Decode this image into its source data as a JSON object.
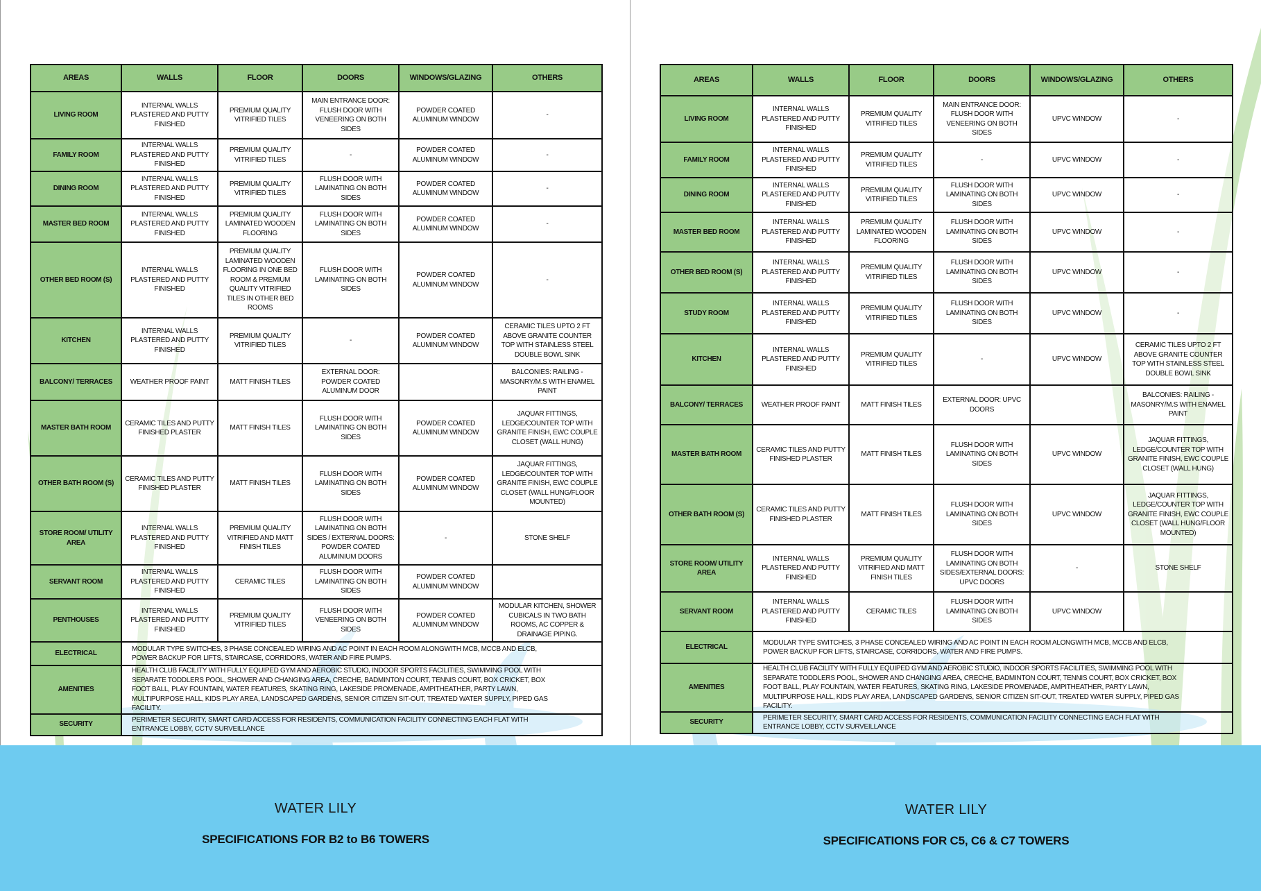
{
  "colors": {
    "header_green": "#98cb87",
    "footer_blue": "#6ecbf0",
    "leaf_green": "#a7d58f"
  },
  "left": {
    "headers": [
      "AREAS",
      "WALLS",
      "FLOOR",
      "DOORS",
      "WINDOWS/GLAZING",
      "OTHERS"
    ],
    "rows": [
      [
        "LIVING ROOM",
        "INTERNAL WALLS PLASTERED AND PUTTY FINISHED",
        "PREMIUM QUALITY VITRIFIED TILES",
        "MAIN ENTRANCE DOOR: FLUSH DOOR WITH VENEERING ON BOTH SIDES",
        "POWDER COATED ALUMINUM WINDOW",
        "-"
      ],
      [
        "FAMILY ROOM",
        "INTERNAL WALLS PLASTERED AND PUTTY FINISHED",
        "PREMIUM QUALITY VITRIFIED TILES",
        "-",
        "POWDER COATED ALUMINUM WINDOW",
        "-"
      ],
      [
        "DINING ROOM",
        "INTERNAL WALLS PLASTERED AND PUTTY FINISHED",
        "PREMIUM QUALITY VITRIFIED TILES",
        "FLUSH DOOR WITH LAMINATING ON BOTH SIDES",
        "POWDER COATED ALUMINUM WINDOW",
        "-"
      ],
      [
        "MASTER BED ROOM",
        "INTERNAL WALLS PLASTERED AND PUTTY FINISHED",
        "PREMIUM QUALITY LAMINATED WOODEN FLOORING",
        "FLUSH DOOR WITH LAMINATING ON BOTH SIDES",
        "POWDER COATED ALUMINUM WINDOW",
        "-"
      ],
      [
        "OTHER BED ROOM (S)",
        "INTERNAL WALLS PLASTERED AND PUTTY FINISHED",
        "PREMIUM QUALITY LAMINATED WOODEN FLOORING IN ONE BED ROOM & PREMIUM QUALITY VITRIFIED TILES IN OTHER BED ROOMS",
        "FLUSH DOOR WITH LAMINATING ON BOTH SIDES",
        "POWDER COATED ALUMINUM WINDOW",
        "-"
      ],
      [
        "KITCHEN",
        "INTERNAL WALLS PLASTERED AND PUTTY FINISHED",
        "PREMIUM QUALITY VITRIFIED TILES",
        "-",
        "POWDER COATED ALUMINUM WINDOW",
        "CERAMIC TILES UPTO 2 FT ABOVE GRANITE COUNTER TOP WITH STAINLESS STEEL DOUBLE BOWL SINK"
      ],
      [
        "BALCONY/ TERRACES",
        "WEATHER PROOF PAINT",
        "MATT FINISH TILES",
        "EXTERNAL DOOR: POWDER COATED ALUMINUM DOOR",
        "",
        "BALCONIES: RAILING - MASONRY/M.S WITH ENAMEL PAINT"
      ],
      [
        "MASTER BATH ROOM",
        "CERAMIC TILES AND PUTTY FINISHED PLASTER",
        "MATT FINISH TILES",
        "FLUSH DOOR WITH LAMINATING ON BOTH SIDES",
        "POWDER COATED ALUMINUM WINDOW",
        "JAQUAR FITTINGS, LEDGE/COUNTER TOP WITH GRANITE FINISH, EWC COUPLE CLOSET (WALL HUNG)"
      ],
      [
        "OTHER BATH ROOM (S)",
        "CERAMIC TILES AND PUTTY FINISHED PLASTER",
        "MATT FINISH TILES",
        "FLUSH DOOR WITH LAMINATING ON BOTH SIDES",
        "POWDER COATED ALUMINUM WINDOW",
        "JAQUAR FITTINGS, LEDGE/COUNTER TOP WITH GRANITE FINISH, EWC COUPLE CLOSET (WALL HUNG/FLOOR MOUNTED)"
      ],
      [
        "STORE ROOM/ UTILITY AREA",
        "INTERNAL WALLS PLASTERED AND PUTTY FINISHED",
        "PREMIUM QUALITY VITRIFIED AND MATT FINISH TILES",
        "FLUSH DOOR WITH LAMINATING ON BOTH SIDES / EXTERNAL DOORS: POWDER COATED ALUMINIUM DOORS",
        "-",
        "STONE SHELF"
      ],
      [
        "SERVANT ROOM",
        "INTERNAL WALLS PLASTERED AND PUTTY FINISHED",
        "CERAMIC TILES",
        "FLUSH DOOR WITH LAMINATING ON BOTH SIDES",
        "POWDER COATED ALUMINUM WINDOW",
        ""
      ],
      [
        "PENTHOUSES",
        "INTERNAL WALLS PLASTERED AND PUTTY FINISHED",
        "PREMIUM QUALITY VITRIFIED TILES",
        "FLUSH DOOR WITH VENEERING ON BOTH SIDES",
        "POWDER COATED ALUMINUM WINDOW",
        "MODULAR KITCHEN, SHOWER CUBICALS IN TWO BATH ROOMS, AC COPPER & DRAINAGE PIPING."
      ]
    ],
    "wide_rows": [
      [
        "ELECTRICAL",
        "MODULAR TYPE SWITCHES, 3 PHASE CONCEALED WIRING AND AC POINT IN EACH ROOM ALONGWITH MCB, MCCB AND ELCB, POWER BACKUP FOR LIFTS, STAIRCASE, CORRIDORS, WATER AND FIRE PUMPS."
      ],
      [
        "AMENITIES",
        "HEALTH CLUB FACILITY WITH FULLY EQUIPED GYM AND AEROBIC STUDIO, INDOOR SPORTS FACILITIES, SWIMMING POOL WITH SEPARATE TODDLERS POOL, SHOWER AND CHANGING AREA, CRECHE, BADMINTON COURT, TENNIS COURT, BOX CRICKET, BOX FOOT BALL, PLAY FOUNTAIN, WATER FEATURES, SKATING RING, LAKESIDE PROMENADE, AMPITHEATHER, PARTY LAWN, MULTIPURPOSE HALL, KIDS PLAY AREA, LANDSCAPED GARDENS, SENIOR CITIZEN SIT-OUT, TREATED WATER SUPPLY, PIPED GAS FACILITY."
      ],
      [
        "SECURITY",
        "PERIMETER SECURITY, SMART CARD ACCESS FOR RESIDENTS, COMMUNICATION FACILITY CONNECTING EACH FLAT WITH ENTRANCE LOBBY, CCTV SURVEILLANCE"
      ]
    ],
    "footer_title": "WATER LILY",
    "footer_subtitle": "SPECIFICATIONS FOR B2 to B6 TOWERS"
  },
  "right": {
    "headers": [
      "AREAS",
      "WALLS",
      "FLOOR",
      "DOORS",
      "WINDOWS/GLAZING",
      "OTHERS"
    ],
    "rows": [
      [
        "LIVING ROOM",
        "INTERNAL WALLS PLASTERED AND PUTTY FINISHED",
        "PREMIUM QUALITY VITRIFIED TILES",
        "MAIN ENTRANCE DOOR: FLUSH DOOR WITH VENEERING ON BOTH SIDES",
        "UPVC WINDOW",
        "-"
      ],
      [
        "FAMILY ROOM",
        "INTERNAL WALLS PLASTERED AND PUTTY FINISHED",
        "PREMIUM QUALITY VITRIFIED TILES",
        "-",
        "UPVC WINDOW",
        "-"
      ],
      [
        "DINING ROOM",
        "INTERNAL WALLS PLASTERED AND PUTTY FINISHED",
        "PREMIUM QUALITY VITRIFIED TILES",
        "FLUSH DOOR WITH LAMINATING ON BOTH SIDES",
        "UPVC WINDOW",
        "-"
      ],
      [
        "MASTER BED ROOM",
        "INTERNAL WALLS PLASTERED AND PUTTY FINISHED",
        "PREMIUM QUALITY LAMINATED WOODEN FLOORING",
        "FLUSH DOOR WITH LAMINATING ON BOTH SIDES",
        "UPVC WINDOW",
        "-"
      ],
      [
        "OTHER BED ROOM (S)",
        "INTERNAL WALLS PLASTERED AND PUTTY FINISHED",
        "PREMIUM QUALITY VITRIFIED TILES",
        "FLUSH DOOR WITH LAMINATING ON BOTH SIDES",
        "UPVC WINDOW",
        "-"
      ],
      [
        "STUDY ROOM",
        "INTERNAL WALLS PLASTERED AND PUTTY FINISHED",
        "PREMIUM QUALITY VITRIFIED TILES",
        "FLUSH DOOR WITH LAMINATING ON BOTH SIDES",
        "UPVC WINDOW",
        "-"
      ],
      [
        "KITCHEN",
        "INTERNAL WALLS PLASTERED AND PUTTY FINISHED",
        "PREMIUM QUALITY VITRIFIED TILES",
        "-",
        "UPVC WINDOW",
        "CERAMIC TILES UPTO 2 FT ABOVE GRANITE COUNTER TOP WITH STAINLESS STEEL DOUBLE BOWL SINK"
      ],
      [
        "BALCONY/ TERRACES",
        "WEATHER PROOF PAINT",
        "MATT FINISH TILES",
        "EXTERNAL DOOR: UPVC DOORS",
        "",
        "BALCONIES: RAILING - MASONRY/M.S WITH ENAMEL PAINT"
      ],
      [
        "MASTER BATH ROOM",
        "CERAMIC TILES AND PUTTY FINISHED PLASTER",
        "MATT FINISH TILES",
        "FLUSH DOOR WITH LAMINATING ON BOTH SIDES",
        "UPVC WINDOW",
        "JAQUAR FITTINGS, LEDGE/COUNTER TOP WITH GRANITE FINISH, EWC COUPLE CLOSET (WALL HUNG)"
      ],
      [
        "OTHER BATH ROOM (S)",
        "CERAMIC TILES AND PUTTY FINISHED PLASTER",
        "MATT FINISH TILES",
        "FLUSH DOOR WITH LAMINATING ON BOTH SIDES",
        "UPVC WINDOW",
        "JAQUAR FITTINGS, LEDGE/COUNTER TOP WITH GRANITE FINISH, EWC COUPLE CLOSET (WALL HUNG/FLOOR MOUNTED)"
      ],
      [
        "STORE ROOM/ UTILITY AREA",
        "INTERNAL WALLS PLASTERED AND PUTTY FINISHED",
        "PREMIUM QUALITY VITRIFIED AND MATT FINISH TILES",
        "FLUSH DOOR WITH LAMINATING ON BOTH SIDES/EXTERNAL DOORS: UPVC DOORS",
        "-",
        "STONE SHELF"
      ],
      [
        "SERVANT ROOM",
        "INTERNAL WALLS PLASTERED AND PUTTY FINISHED",
        "CERAMIC TILES",
        "FLUSH DOOR WITH LAMINATING ON BOTH SIDES",
        "UPVC WINDOW",
        ""
      ]
    ],
    "wide_rows": [
      [
        "ELECTRICAL",
        "MODULAR TYPE SWITCHES, 3 PHASE CONCEALED WIRING AND AC POINT IN EACH ROOM ALONGWITH MCB, MCCB AND ELCB, POWER BACKUP FOR LIFTS, STAIRCASE, CORRIDORS, WATER AND FIRE PUMPS."
      ],
      [
        "AMENITIES",
        "HEALTH CLUB FACILITY WITH FULLY EQUIPED GYM AND AEROBIC STUDIO, INDOOR SPORTS FACILITIES, SWIMMING POOL WITH SEPARATE TODDLERS POOL, SHOWER AND CHANGING AREA, CRECHE, BADMINTON COURT, TENNIS COURT, BOX CRICKET, BOX FOOT BALL, PLAY FOUNTAIN, WATER FEATURES, SKATING RING, LAKESIDE PROMENADE, AMPITHEATHER, PARTY LAWN, MULTIPURPOSE HALL, KIDS PLAY AREA, LANDSCAPED GARDENS, SENIOR CITIZEN SIT-OUT, TREATED WATER SUPPLY, PIPED GAS FACILITY."
      ],
      [
        "SECURITY",
        "PERIMETER SECURITY, SMART CARD ACCESS FOR RESIDENTS, COMMUNICATION FACILITY CONNECTING EACH FLAT WITH ENTRANCE LOBBY, CCTV SURVEILLANCE"
      ]
    ],
    "footer_title": "WATER LILY",
    "footer_subtitle": "SPECIFICATIONS FOR C5, C6 & C7 TOWERS"
  }
}
